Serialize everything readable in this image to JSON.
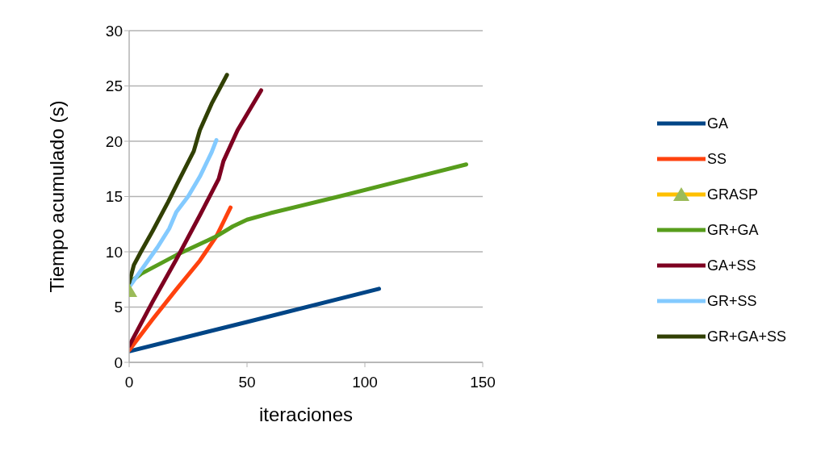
{
  "chart_data": {
    "type": "line",
    "xlabel": "iteraciones",
    "ylabel": "Tiempo acumulado (s)",
    "xlim": [
      0,
      150
    ],
    "xticks": [
      0,
      50,
      100,
      150
    ],
    "ylim": [
      0,
      30
    ],
    "yticks": [
      0,
      5,
      10,
      15,
      20,
      25,
      30
    ],
    "grid": "y",
    "legend": "right",
    "marker": "none",
    "line_style": "solid",
    "series": [
      {
        "name": "GA",
        "color": "#004586",
        "x": [
          0,
          50,
          106
        ],
        "values": [
          1,
          3.65,
          6.65
        ]
      },
      {
        "name": "SS",
        "color": "#ff420e",
        "x": [
          0,
          10,
          20,
          30,
          37,
          40,
          43
        ],
        "values": [
          1.1,
          3.9,
          6.6,
          9.2,
          11.4,
          12.7,
          14
        ]
      },
      {
        "name": "GRASP",
        "color": "#9bbb59",
        "marker": "triangle",
        "x": [
          0
        ],
        "values": [
          6.5
        ]
      },
      {
        "name": "GR+GA",
        "color": "#579d1c",
        "x": [
          0,
          5,
          20,
          37,
          44,
          50,
          60,
          89,
          143
        ],
        "values": [
          7.2,
          8,
          9.7,
          11.4,
          12.3,
          12.9,
          13.5,
          15,
          17.9
        ]
      },
      {
        "name": "GA+SS",
        "color": "#7e0021",
        "x": [
          0,
          10,
          20,
          30,
          38,
          40,
          46,
          56
        ],
        "values": [
          1.5,
          5.5,
          9.3,
          13.3,
          16.6,
          18.2,
          21,
          24.6
        ]
      },
      {
        "name": "GR+SS",
        "color": "#83caff",
        "x": [
          0,
          5,
          12,
          17,
          20,
          25,
          30,
          35,
          37
        ],
        "values": [
          6.8,
          8.3,
          10.4,
          12.1,
          13.6,
          15,
          16.8,
          19,
          20.1
        ]
      },
      {
        "name": "GR+GA+SS",
        "color": "#314004",
        "x": [
          0,
          2,
          5,
          10,
          16.5,
          20,
          27.4,
          30,
          35,
          41.5
        ],
        "values": [
          7.2,
          8.8,
          10,
          11.9,
          14.5,
          16,
          19.1,
          21,
          23.4,
          26
        ]
      }
    ]
  }
}
